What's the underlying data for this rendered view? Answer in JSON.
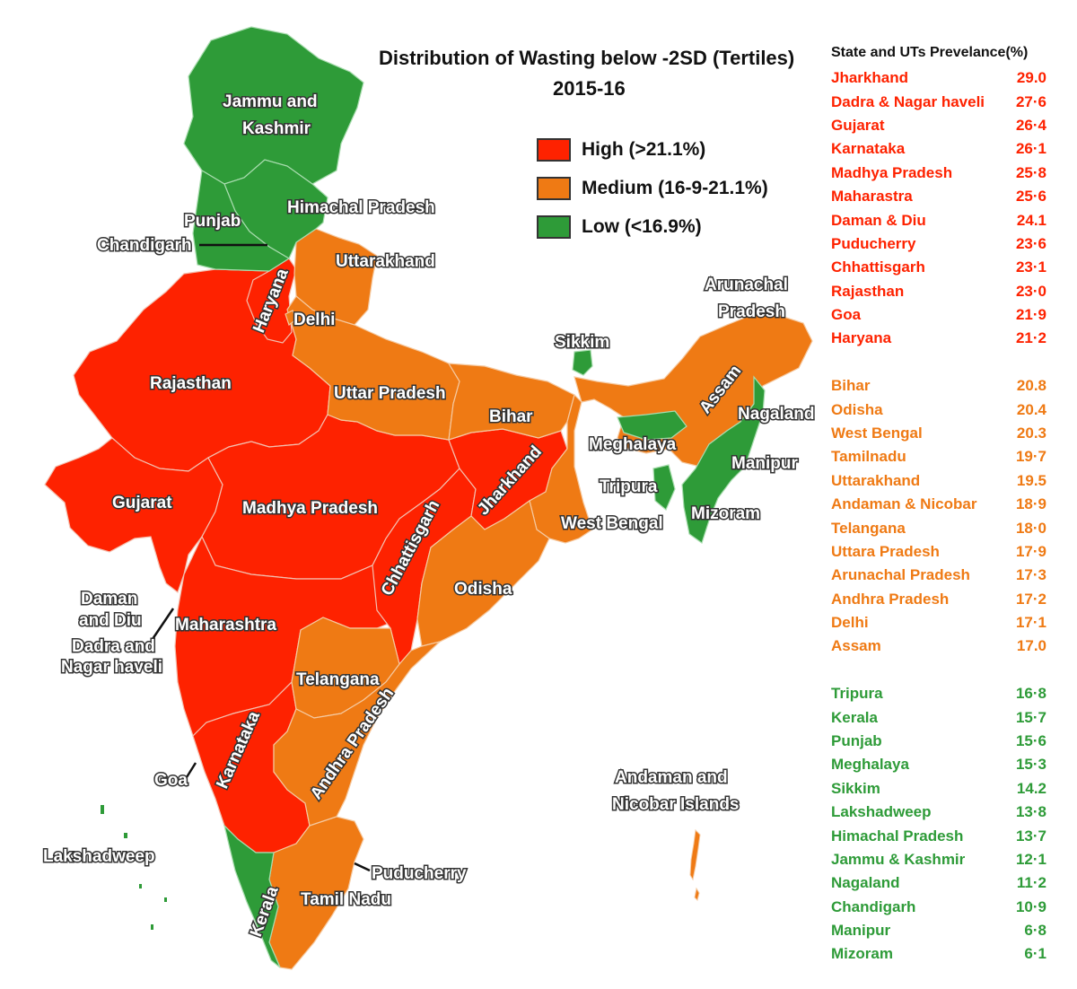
{
  "title": {
    "line1": "Distribution of Wasting below -2SD (Tertiles)",
    "line2": "2015-16"
  },
  "legend": [
    {
      "label": "High  (>21.1%)",
      "color": "#fe2200"
    },
    {
      "label": "Medium (16-9-21.1%)",
      "color": "#ef7a14"
    },
    {
      "label": "Low (<16.9%)",
      "color": "#2e9b38"
    }
  ],
  "colors": {
    "high": "#fe2200",
    "medium": "#ef7a14",
    "low": "#2e9b38"
  },
  "table": {
    "header": "State and UTs Prevelance(%)",
    "high": [
      {
        "name": "Jharkhand",
        "value": "29.0"
      },
      {
        "name": "Dadra & Nagar haveli",
        "value": "27·6"
      },
      {
        "name": "Gujarat",
        "value": "26·4"
      },
      {
        "name": "Karnataka",
        "value": "26·1"
      },
      {
        "name": "Madhya Pradesh",
        "value": "25·8"
      },
      {
        "name": "Maharastra",
        "value": "25·6"
      },
      {
        "name": "Daman & Diu",
        "value": "24.1"
      },
      {
        "name": "Puducherry",
        "value": "23·6"
      },
      {
        "name": "Chhattisgarh",
        "value": "23·1"
      },
      {
        "name": "Rajasthan",
        "value": "23·0"
      },
      {
        "name": "Goa",
        "value": "21·9"
      },
      {
        "name": "Haryana",
        "value": "21·2"
      }
    ],
    "medium": [
      {
        "name": "Bihar",
        "value": "20.8"
      },
      {
        "name": "Odisha",
        "value": "20.4"
      },
      {
        "name": "West Bengal",
        "value": "20.3"
      },
      {
        "name": "Tamilnadu",
        "value": "19·7"
      },
      {
        "name": "Uttarakhand",
        "value": "19.5"
      },
      {
        "name": "Andaman & Nicobar",
        "value": "18·9"
      },
      {
        "name": "Telangana",
        "value": "18·0"
      },
      {
        "name": "Uttara Pradesh",
        "value": "17·9"
      },
      {
        "name": "Arunachal Pradesh",
        "value": "17·3"
      },
      {
        "name": "Andhra Pradesh",
        "value": "17·2"
      },
      {
        "name": "Delhi",
        "value": "17·1"
      },
      {
        "name": "Assam",
        "value": "17.0"
      }
    ],
    "low": [
      {
        "name": "Tripura",
        "value": "16·8"
      },
      {
        "name": "Kerala",
        "value": "15·7"
      },
      {
        "name": "Punjab",
        "value": "15·6"
      },
      {
        "name": "Meghalaya",
        "value": "15·3"
      },
      {
        "name": "Sikkim",
        "value": "14.2"
      },
      {
        "name": "Lakshadweep",
        "value": "13·8"
      },
      {
        "name": "Himachal Pradesh",
        "value": "13·7"
      },
      {
        "name": "Jammu & Kashmir",
        "value": "12·1"
      },
      {
        "name": "Nagaland",
        "value": "11·2"
      },
      {
        "name": "Chandigarh",
        "value": "10·9"
      },
      {
        "name": "Manipur",
        "value": "6·8"
      },
      {
        "name": "Mizoram",
        "value": "6·1"
      }
    ]
  },
  "map_labels": {
    "jk1": "Jammu and",
    "jk2": "Kashmir",
    "hp": "Himachal Pradesh",
    "punjab": "Punjab",
    "chandigarh": "Chandigarh",
    "uttarakhand": "Uttarakhand",
    "haryana": "Haryana",
    "delhi": "Delhi",
    "rajasthan": "Rajasthan",
    "up": "Uttar Pradesh",
    "bihar": "Bihar",
    "sikkim": "Sikkim",
    "arunachal1": "Arunachal",
    "arunachal2": "Pradesh",
    "assam": "Assam",
    "nagaland": "Nagaland",
    "meghalaya": "Meghalaya",
    "manipur": "Manipur",
    "tripura": "Tripura",
    "mizoram": "Mizoram",
    "westbengal": "West Bengal",
    "jharkhand": "Jharkhand",
    "gujarat": "Gujarat",
    "mp": "Madhya Pradesh",
    "chhattisgarh": "Chhattisgarh",
    "odisha": "Odisha",
    "daman1": "Daman",
    "daman2": "and Diu",
    "dadra1": "Dadra and",
    "dadra2": "Nagar haveli",
    "maharashtra": "Maharashtra",
    "telangana": "Telangana",
    "andhra": "Andhra Pradesh",
    "karnataka": "Karnataka",
    "goa": "Goa",
    "andaman1": "Andaman and",
    "andaman2": "Nicobar Islands",
    "lakshadweep": "Lakshadweep",
    "puducherry": "Puducherry",
    "kerala": "Kerala",
    "tamilnadu": "Tamil Nadu"
  }
}
